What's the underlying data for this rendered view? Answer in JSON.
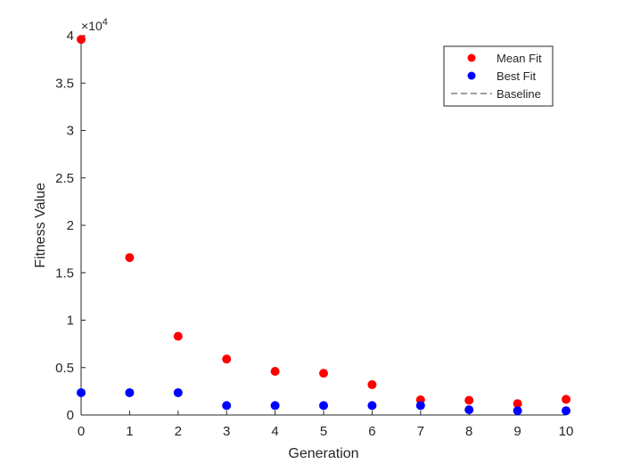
{
  "chart_data": {
    "type": "scatter",
    "title": "",
    "xlabel": "Generation",
    "ylabel": "Fitness Value",
    "xlim": [
      0,
      10
    ],
    "ylim": [
      0,
      40000
    ],
    "exponent_label": "×10",
    "exponent_value": "4",
    "x_ticks": [
      0,
      1,
      2,
      3,
      4,
      5,
      6,
      7,
      8,
      9,
      10
    ],
    "x_tick_labels": [
      "0",
      "1",
      "2",
      "3",
      "4",
      "5",
      "6",
      "7",
      "8",
      "9",
      "10"
    ],
    "y_ticks": [
      0,
      5000,
      10000,
      15000,
      20000,
      25000,
      30000,
      35000,
      40000
    ],
    "y_tick_labels": [
      "0",
      "0.5",
      "1",
      "1.5",
      "2",
      "2.5",
      "3",
      "3.5",
      "4"
    ],
    "grid": false,
    "legend_position": "top-right",
    "x": [
      0,
      1,
      2,
      3,
      4,
      5,
      6,
      7,
      8,
      9,
      10
    ],
    "series": [
      {
        "name": "Mean Fit",
        "color": "#ff0000",
        "marker": "circle",
        "values": [
          39600,
          16600,
          8300,
          5900,
          4600,
          4400,
          3200,
          1600,
          1550,
          1200,
          1650
        ]
      },
      {
        "name": "Best Fit",
        "color": "#0000ff",
        "marker": "circle",
        "values": [
          2350,
          2350,
          2350,
          1000,
          1000,
          1000,
          1000,
          1000,
          550,
          450,
          450
        ]
      },
      {
        "name": "Baseline",
        "color": "#000000",
        "line_style": "dashed",
        "values": []
      }
    ]
  }
}
